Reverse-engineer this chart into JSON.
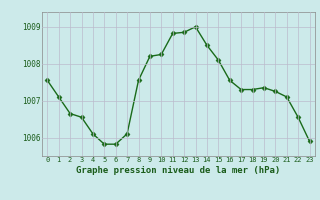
{
  "x": [
    0,
    1,
    2,
    3,
    4,
    5,
    6,
    7,
    8,
    9,
    10,
    11,
    12,
    13,
    14,
    15,
    16,
    17,
    18,
    19,
    20,
    21,
    22,
    23
  ],
  "y": [
    1007.55,
    1007.1,
    1006.65,
    1006.55,
    1006.1,
    1005.82,
    1005.82,
    1006.1,
    1007.55,
    1008.2,
    1008.25,
    1008.82,
    1008.85,
    1009.0,
    1008.5,
    1008.1,
    1007.55,
    1007.3,
    1007.3,
    1007.35,
    1007.25,
    1007.1,
    1006.55,
    1005.9
  ],
  "line_color": "#1a6b1a",
  "marker": "D",
  "marker_size": 2.5,
  "bg_color": "#cceaea",
  "grid_color": "#bbbbcc",
  "xlabel": "Graphe pression niveau de la mer (hPa)",
  "ylim": [
    1005.5,
    1009.4
  ],
  "xlim": [
    -0.5,
    23.5
  ],
  "yticks": [
    1006,
    1007,
    1008,
    1009
  ],
  "xtick_labels": [
    "0",
    "1",
    "2",
    "3",
    "4",
    "5",
    "6",
    "7",
    "8",
    "9",
    "10",
    "11",
    "12",
    "13",
    "14",
    "15",
    "16",
    "17",
    "18",
    "19",
    "20",
    "21",
    "22",
    "23"
  ]
}
